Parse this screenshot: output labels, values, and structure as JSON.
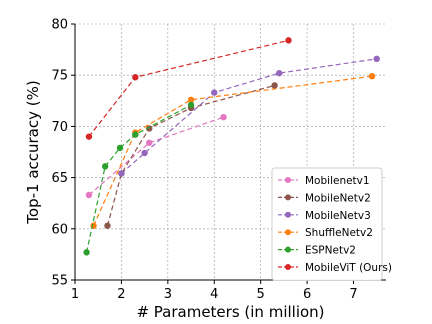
{
  "chart_data": {
    "type": "line",
    "title": "",
    "xlabel": "# Parameters (in million)",
    "ylabel": "Top-1 accuracy (%)",
    "xlim": [
      1,
      7.7
    ],
    "ylim": [
      55,
      80
    ],
    "xticks": [
      1,
      2,
      3,
      4,
      5,
      6,
      7
    ],
    "yticks": [
      55,
      60,
      65,
      70,
      75,
      80
    ],
    "grid": true,
    "legend_position": "bottom-right",
    "series": [
      {
        "name": "Mobilenetv1",
        "color": "#e377c2",
        "x": [
          1.3,
          2.6,
          4.2
        ],
        "y": [
          63.3,
          68.4,
          70.9
        ]
      },
      {
        "name": "MobileNetv2",
        "color": "#8c564b",
        "x": [
          1.7,
          2.0,
          2.6,
          3.5,
          5.3
        ],
        "y": [
          60.3,
          65.4,
          69.8,
          71.8,
          74.0
        ]
      },
      {
        "name": "MobileNetv3",
        "color": "#9467bd",
        "x": [
          2.0,
          2.5,
          4.0,
          5.4,
          7.5
        ],
        "y": [
          65.4,
          67.4,
          73.3,
          75.2,
          76.6
        ]
      },
      {
        "name": "ShuffleNetv2",
        "color": "#ff7f0e",
        "x": [
          1.4,
          2.3,
          3.5,
          7.4
        ],
        "y": [
          60.3,
          69.4,
          72.6,
          74.9
        ]
      },
      {
        "name": "ESPNetv2",
        "color": "#2ca02c",
        "x": [
          1.25,
          1.65,
          1.97,
          2.3,
          3.5
        ],
        "y": [
          57.7,
          66.1,
          67.9,
          69.2,
          72.1
        ]
      },
      {
        "name": "MobileViT (Ours)",
        "color": "#d62728",
        "x": [
          1.3,
          2.3,
          5.6
        ],
        "y": [
          69.0,
          74.8,
          78.4
        ]
      }
    ]
  }
}
